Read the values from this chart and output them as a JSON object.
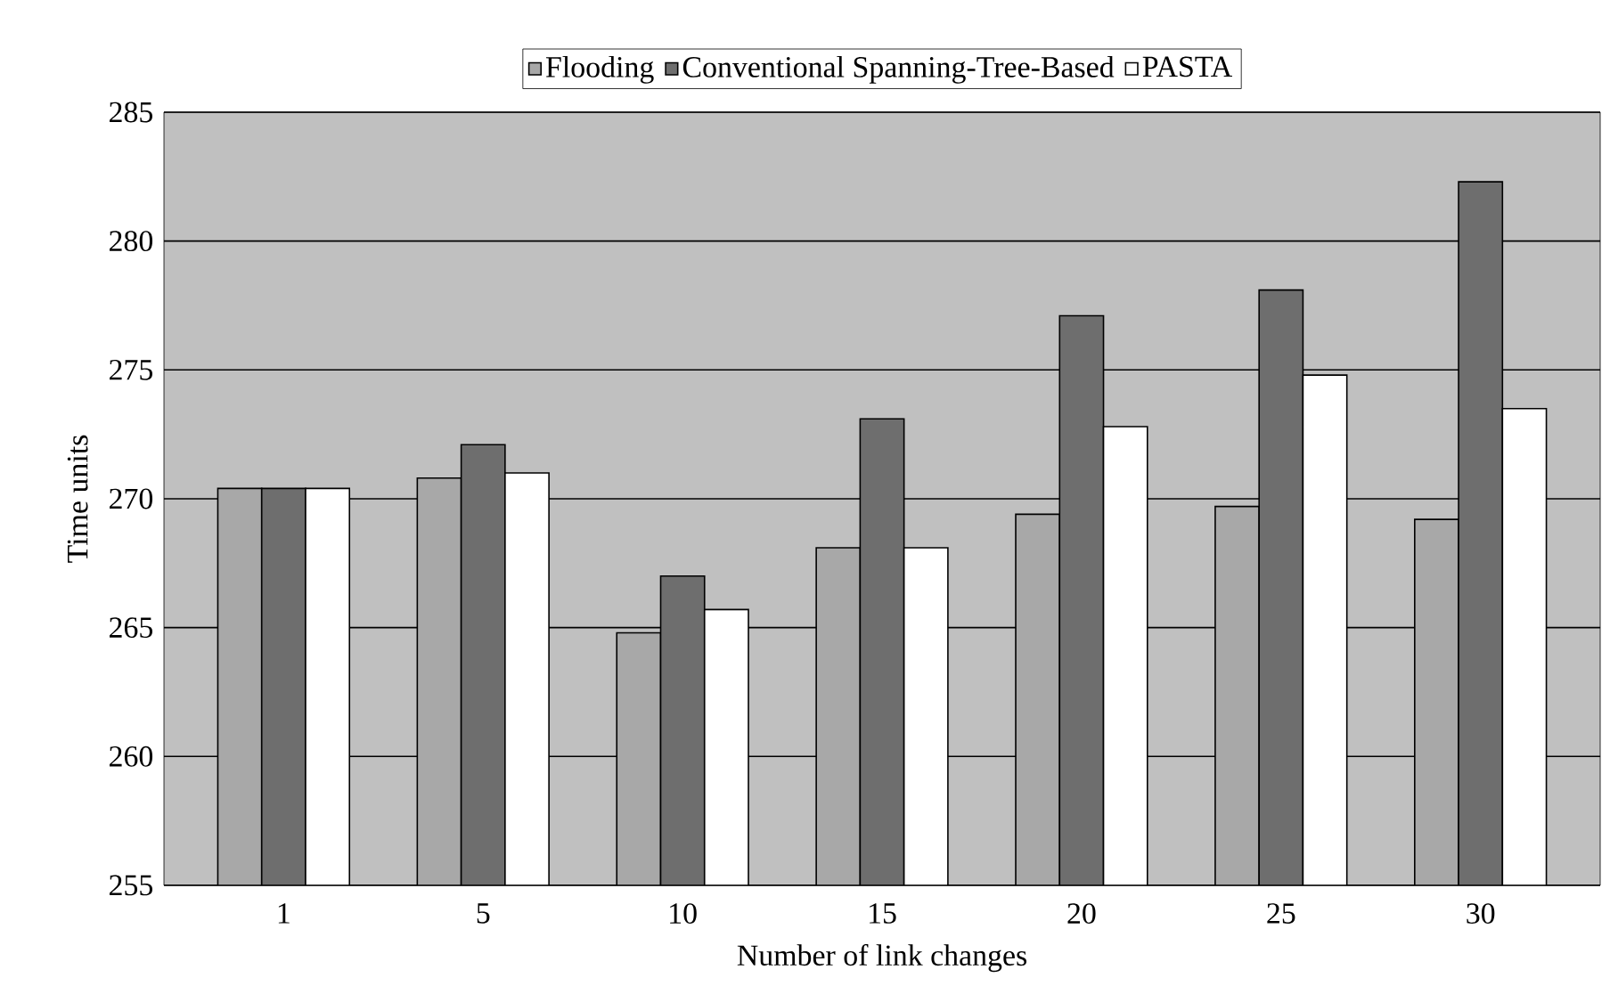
{
  "chart_data": {
    "type": "bar",
    "xlabel": "Number of link changes",
    "ylabel": "Time units",
    "categories": [
      "1",
      "5",
      "10",
      "15",
      "20",
      "25",
      "30"
    ],
    "series": [
      {
        "name": "Flooding",
        "color": "#a8a8a8",
        "values": [
          270.4,
          270.8,
          264.8,
          268.1,
          269.4,
          269.7,
          269.2
        ]
      },
      {
        "name": "Conventional Spanning-Tree-Based",
        "color": "#6e6e6e",
        "values": [
          270.4,
          272.1,
          267.0,
          273.1,
          277.1,
          278.1,
          282.3
        ]
      },
      {
        "name": "PASTA",
        "color": "#ffffff",
        "values": [
          270.4,
          271.0,
          265.7,
          268.1,
          272.8,
          274.8,
          273.5
        ]
      }
    ],
    "ylim": [
      255,
      285
    ],
    "yticks": [
      255,
      260,
      265,
      270,
      275,
      280,
      285
    ],
    "grid": "y",
    "legend": "top"
  }
}
